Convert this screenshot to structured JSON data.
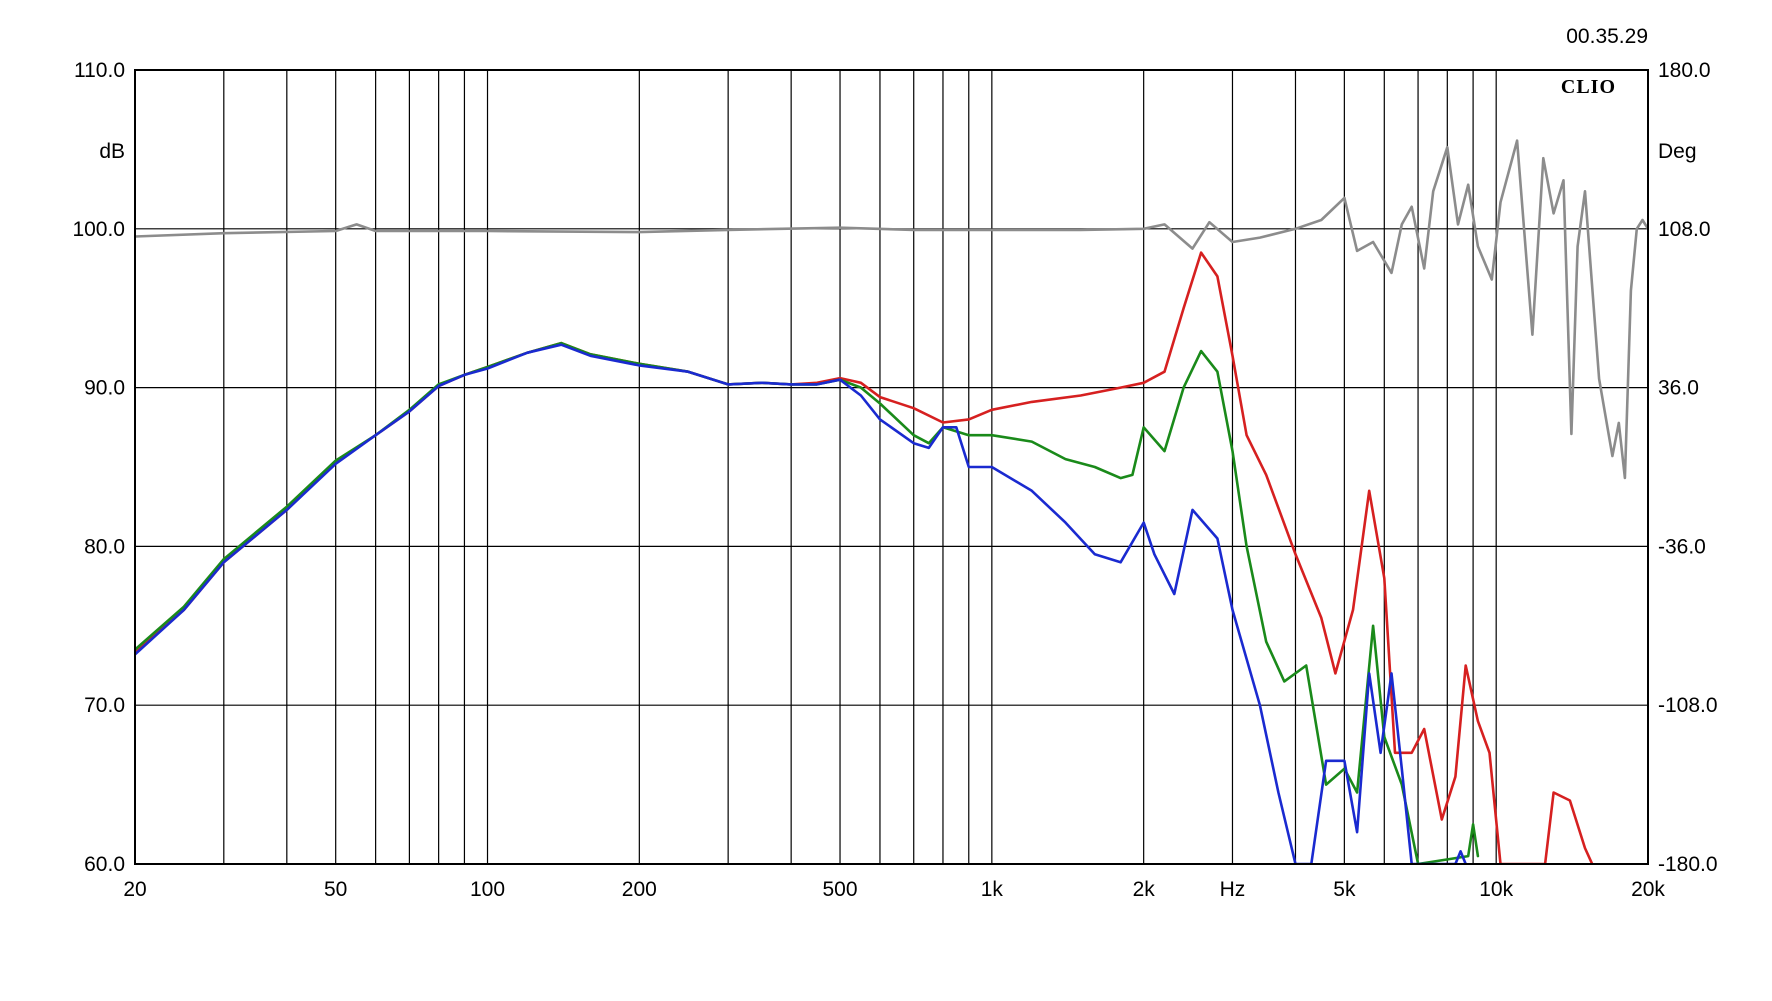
{
  "timestamp": "00.35.29",
  "brand": "CLIO",
  "chart_data": {
    "type": "line",
    "x_scale": "log",
    "xlim": [
      20,
      20000
    ],
    "x_ticks": [
      {
        "v": 20,
        "label": "20"
      },
      {
        "v": 50,
        "label": "50"
      },
      {
        "v": 100,
        "label": "100"
      },
      {
        "v": 200,
        "label": "200"
      },
      {
        "v": 500,
        "label": "500"
      },
      {
        "v": 1000,
        "label": "1k"
      },
      {
        "v": 2000,
        "label": "2k"
      },
      {
        "v": 5000,
        "label": "5k"
      },
      {
        "v": 10000,
        "label": "10k"
      },
      {
        "v": 20000,
        "label": "20k"
      }
    ],
    "x_unit_label": "Hz",
    "x_unit_at": 3000,
    "x_grid": [
      20,
      30,
      40,
      50,
      60,
      70,
      80,
      90,
      100,
      200,
      300,
      400,
      500,
      600,
      700,
      800,
      900,
      1000,
      2000,
      3000,
      4000,
      5000,
      6000,
      7000,
      8000,
      9000,
      10000,
      20000
    ],
    "ylabel": "dB",
    "ylim": [
      60,
      110
    ],
    "y_ticks": [
      "60.0",
      "70.0",
      "80.0",
      "90.0",
      "100.0",
      "110.0"
    ],
    "y2label": "Deg",
    "y2lim": [
      -180,
      180
    ],
    "y2_ticks": [
      "-180.0",
      "-108.0",
      "-36.0",
      "36.0",
      "108.0",
      "180.0"
    ],
    "grid": true,
    "series": [
      {
        "color": "#d62020",
        "axis": "left",
        "points": [
          [
            20,
            73.3
          ],
          [
            25,
            76.0
          ],
          [
            30,
            79.0
          ],
          [
            40,
            82.3
          ],
          [
            50,
            85.3
          ],
          [
            60,
            87.0
          ],
          [
            70,
            88.5
          ],
          [
            80,
            90.1
          ],
          [
            90,
            90.8
          ],
          [
            100,
            91.3
          ],
          [
            120,
            92.2
          ],
          [
            140,
            92.8
          ],
          [
            160,
            92.1
          ],
          [
            200,
            91.5
          ],
          [
            250,
            91.0
          ],
          [
            300,
            90.2
          ],
          [
            350,
            90.3
          ],
          [
            400,
            90.2
          ],
          [
            450,
            90.3
          ],
          [
            500,
            90.6
          ],
          [
            550,
            90.3
          ],
          [
            600,
            89.4
          ],
          [
            700,
            88.7
          ],
          [
            800,
            87.8
          ],
          [
            900,
            88.0
          ],
          [
            1000,
            88.6
          ],
          [
            1200,
            89.1
          ],
          [
            1500,
            89.5
          ],
          [
            1800,
            90.0
          ],
          [
            2000,
            90.3
          ],
          [
            2200,
            91.0
          ],
          [
            2400,
            95.0
          ],
          [
            2600,
            98.5
          ],
          [
            2800,
            97.0
          ],
          [
            3000,
            92.0
          ],
          [
            3200,
            87.0
          ],
          [
            3500,
            84.5
          ],
          [
            4000,
            79.5
          ],
          [
            4500,
            75.5
          ],
          [
            4800,
            72.0
          ],
          [
            5200,
            76.0
          ],
          [
            5600,
            83.5
          ],
          [
            6000,
            78.0
          ],
          [
            6300,
            67.0
          ],
          [
            6800,
            67.0
          ],
          [
            7200,
            68.5
          ],
          [
            7800,
            62.8
          ],
          [
            8300,
            65.5
          ],
          [
            8700,
            72.5
          ],
          [
            9200,
            69.0
          ],
          [
            9700,
            67.0
          ],
          [
            10200,
            60.0
          ],
          [
            12500,
            60.0
          ],
          [
            13000,
            64.5
          ],
          [
            14000,
            64.0
          ],
          [
            15000,
            61.0
          ],
          [
            15500,
            60.0
          ]
        ]
      },
      {
        "color": "#1a8a1a",
        "axis": "left",
        "points": [
          [
            20,
            73.5
          ],
          [
            25,
            76.2
          ],
          [
            30,
            79.2
          ],
          [
            40,
            82.5
          ],
          [
            50,
            85.4
          ],
          [
            60,
            87.0
          ],
          [
            70,
            88.6
          ],
          [
            80,
            90.2
          ],
          [
            90,
            90.8
          ],
          [
            100,
            91.3
          ],
          [
            120,
            92.2
          ],
          [
            140,
            92.8
          ],
          [
            160,
            92.1
          ],
          [
            200,
            91.5
          ],
          [
            250,
            91.0
          ],
          [
            300,
            90.2
          ],
          [
            350,
            90.3
          ],
          [
            400,
            90.2
          ],
          [
            450,
            90.2
          ],
          [
            500,
            90.5
          ],
          [
            550,
            90.0
          ],
          [
            600,
            89.0
          ],
          [
            700,
            87.0
          ],
          [
            750,
            86.5
          ],
          [
            800,
            87.5
          ],
          [
            900,
            87.0
          ],
          [
            1000,
            87.0
          ],
          [
            1200,
            86.6
          ],
          [
            1400,
            85.5
          ],
          [
            1600,
            85.0
          ],
          [
            1800,
            84.3
          ],
          [
            1900,
            84.5
          ],
          [
            2000,
            87.5
          ],
          [
            2200,
            86.0
          ],
          [
            2400,
            90.0
          ],
          [
            2600,
            92.3
          ],
          [
            2800,
            91.0
          ],
          [
            3000,
            86.0
          ],
          [
            3200,
            80.0
          ],
          [
            3500,
            74.0
          ],
          [
            3800,
            71.5
          ],
          [
            4200,
            72.5
          ],
          [
            4600,
            65.0
          ],
          [
            5000,
            66.0
          ],
          [
            5300,
            64.5
          ],
          [
            5700,
            75.0
          ],
          [
            6000,
            68.0
          ],
          [
            6500,
            65.0
          ],
          [
            7000,
            60.0
          ],
          [
            8800,
            60.5
          ],
          [
            9000,
            62.5
          ],
          [
            9200,
            60.5
          ]
        ]
      },
      {
        "color": "#1a2ad0",
        "axis": "left",
        "points": [
          [
            20,
            73.2
          ],
          [
            25,
            76.0
          ],
          [
            30,
            79.0
          ],
          [
            40,
            82.3
          ],
          [
            50,
            85.2
          ],
          [
            60,
            87.0
          ],
          [
            70,
            88.5
          ],
          [
            80,
            90.1
          ],
          [
            90,
            90.8
          ],
          [
            100,
            91.2
          ],
          [
            120,
            92.2
          ],
          [
            140,
            92.7
          ],
          [
            160,
            92.0
          ],
          [
            200,
            91.4
          ],
          [
            250,
            91.0
          ],
          [
            300,
            90.2
          ],
          [
            350,
            90.3
          ],
          [
            400,
            90.2
          ],
          [
            450,
            90.2
          ],
          [
            500,
            90.5
          ],
          [
            550,
            89.5
          ],
          [
            600,
            88.0
          ],
          [
            700,
            86.5
          ],
          [
            750,
            86.2
          ],
          [
            800,
            87.5
          ],
          [
            850,
            87.5
          ],
          [
            900,
            85.0
          ],
          [
            1000,
            85.0
          ],
          [
            1200,
            83.5
          ],
          [
            1400,
            81.5
          ],
          [
            1600,
            79.5
          ],
          [
            1800,
            79.0
          ],
          [
            2000,
            81.5
          ],
          [
            2100,
            79.5
          ],
          [
            2300,
            77.0
          ],
          [
            2500,
            82.3
          ],
          [
            2800,
            80.5
          ],
          [
            3000,
            76.0
          ],
          [
            3400,
            70.0
          ],
          [
            3700,
            64.5
          ],
          [
            4000,
            60.0
          ],
          [
            4300,
            60.0
          ],
          [
            4600,
            66.5
          ],
          [
            5000,
            66.5
          ],
          [
            5300,
            62.0
          ],
          [
            5600,
            72.0
          ],
          [
            5900,
            67.0
          ],
          [
            6200,
            72.0
          ],
          [
            6500,
            66.0
          ],
          [
            6800,
            60.0
          ],
          [
            8300,
            60.0
          ],
          [
            8500,
            60.8
          ],
          [
            8700,
            60.0
          ]
        ]
      },
      {
        "color": "#8c8c8c",
        "axis": "right",
        "points": [
          [
            20,
            104.5
          ],
          [
            30,
            106.0
          ],
          [
            50,
            107.0
          ],
          [
            55,
            110.0
          ],
          [
            60,
            107.0
          ],
          [
            100,
            107.0
          ],
          [
            200,
            106.5
          ],
          [
            300,
            107.5
          ],
          [
            500,
            108.5
          ],
          [
            700,
            107.5
          ],
          [
            1000,
            107.5
          ],
          [
            1500,
            107.5
          ],
          [
            2000,
            108.0
          ],
          [
            2200,
            110.0
          ],
          [
            2500,
            99.0
          ],
          [
            2700,
            111.0
          ],
          [
            3000,
            102.0
          ],
          [
            3400,
            104.0
          ],
          [
            4000,
            108.0
          ],
          [
            4500,
            112.0
          ],
          [
            5000,
            122.0
          ],
          [
            5300,
            98.0
          ],
          [
            5700,
            102.0
          ],
          [
            6200,
            88.0
          ],
          [
            6500,
            110.0
          ],
          [
            6800,
            118.0
          ],
          [
            7200,
            90.0
          ],
          [
            7500,
            125.0
          ],
          [
            8000,
            145.0
          ],
          [
            8400,
            110.0
          ],
          [
            8800,
            128.0
          ],
          [
            9200,
            100.0
          ],
          [
            9800,
            85.0
          ],
          [
            10200,
            120.0
          ],
          [
            11000,
            148.0
          ],
          [
            11800,
            60.0
          ],
          [
            12400,
            140.0
          ],
          [
            13000,
            115.0
          ],
          [
            13600,
            130.0
          ],
          [
            14100,
            15.0
          ],
          [
            14500,
            100.0
          ],
          [
            15000,
            125.0
          ],
          [
            16000,
            40.0
          ],
          [
            17000,
            5.0
          ],
          [
            17500,
            20.0
          ],
          [
            18000,
            -5.0
          ],
          [
            18500,
            80.0
          ],
          [
            19000,
            108.0
          ],
          [
            19500,
            112.0
          ],
          [
            20000,
            108.0
          ]
        ]
      }
    ]
  }
}
